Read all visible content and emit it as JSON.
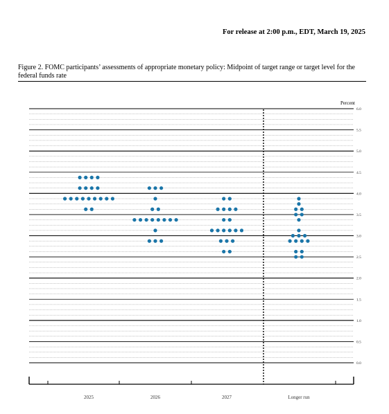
{
  "header": {
    "release_line": "For release at 2:00 p.m., EDT, March 19, 2025"
  },
  "figure": {
    "caption": "Figure 2. FOMC participants’ assessments of appropriate monetary policy: Midpoint of target range or target level for the federal funds rate"
  },
  "chart_data": {
    "type": "scatter",
    "subtype": "dot-plot",
    "title": "",
    "ylabel": "Percent",
    "xlabel": "",
    "ylim": [
      0,
      6
    ],
    "y_ticks": [
      "6.0",
      "5.5",
      "5.0",
      "4.5",
      "4.0",
      "3.5",
      "3.0",
      "2.5",
      "2.0",
      "1.5",
      "1.0",
      "0.5",
      "0.0"
    ],
    "categories": [
      "2025",
      "2026",
      "2027",
      "Longer run"
    ],
    "grid": true,
    "dot_color": "#1a75a8",
    "series": [
      {
        "category": "2025",
        "counts": {
          "4.375": 4,
          "4.125": 4,
          "3.875": 9,
          "3.625": 2
        }
      },
      {
        "category": "2026",
        "counts": {
          "4.125": 3,
          "3.875": 1,
          "3.625": 2,
          "3.375": 8,
          "3.125": 1,
          "2.875": 3
        }
      },
      {
        "category": "2027",
        "counts": {
          "3.875": 2,
          "3.625": 4,
          "3.375": 2,
          "3.125": 6,
          "2.875": 3,
          "2.625": 2
        }
      },
      {
        "category": "Longer run",
        "counts": {
          "3.875": 1,
          "3.75": 1,
          "3.625": 2,
          "3.5": 2,
          "3.375": 1,
          "3.125": 1,
          "3.0": 3,
          "2.875": 4,
          "2.625": 2,
          "2.5": 2
        }
      }
    ]
  }
}
